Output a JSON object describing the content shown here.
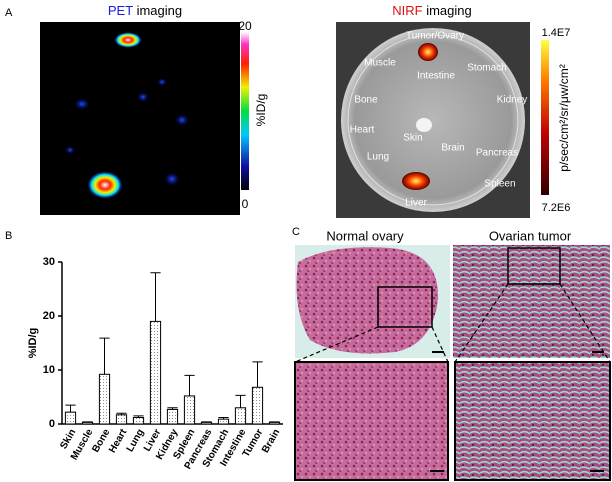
{
  "panel_a": {
    "letter": "A",
    "pet": {
      "title_highlight": "PET",
      "title_rest": "imaging",
      "scale_max": "20",
      "scale_min": "0",
      "scale_unit": "%ID/g"
    },
    "nirf": {
      "title_highlight": "NIRF",
      "title_rest": "imaging",
      "scale_max": "1.4E7",
      "scale_min": "7.2E6",
      "scale_unit": "p/sec/cm²/sr/μw/cm²",
      "organs": [
        "Tumor/Ovary",
        "Muscle",
        "Intestine",
        "Stomach",
        "Bone",
        "Kidney",
        "Heart",
        "Skin",
        "Brain",
        "Pancreas",
        "Lung",
        "Spleen",
        "Liver"
      ]
    }
  },
  "panel_b": {
    "letter": "B"
  },
  "chart_data": {
    "type": "bar",
    "y_label": "%ID/g",
    "categories": [
      "Skin",
      "Muscle",
      "Bone",
      "Heart",
      "Lung",
      "Liver",
      "Kidney",
      "Spleen",
      "Pancreas",
      "Stomach",
      "Intestine",
      "Tumor",
      "Brain"
    ],
    "values": [
      2.2,
      0.3,
      9.2,
      1.7,
      1.2,
      19,
      2.7,
      5.2,
      0.3,
      0.9,
      3,
      6.8,
      0.3
    ],
    "errors": [
      1.3,
      0.1,
      6.7,
      0.3,
      0.3,
      9,
      0.3,
      3.8,
      0.1,
      0.3,
      2.3,
      4.7,
      0.1
    ],
    "ylim": [
      0,
      30
    ],
    "yticks": [
      0,
      10,
      20,
      30
    ],
    "color": "#ffffff"
  },
  "panel_c": {
    "letter": "C",
    "left_title": "Normal ovary",
    "right_title": "Ovarian tumor"
  }
}
